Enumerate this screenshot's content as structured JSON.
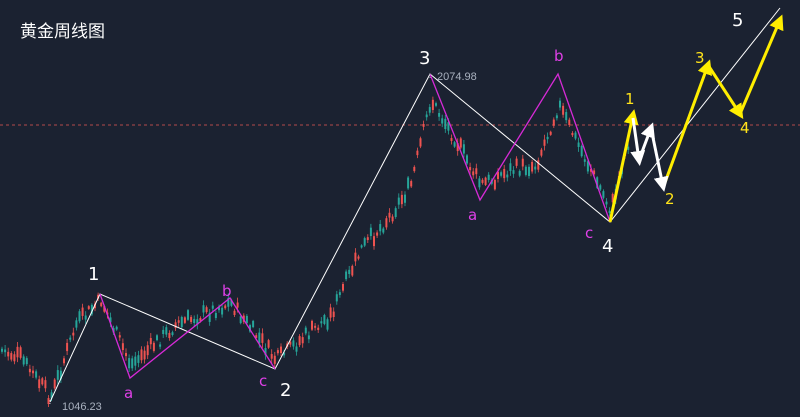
{
  "chart_data": {
    "type": "candlestick",
    "title": "黄金周线图",
    "price_markers": {
      "low": "1046.23",
      "high": "2074.98"
    },
    "wave_labels": [
      {
        "text": "1",
        "color": "#ffffff",
        "size": "big"
      },
      {
        "text": "2",
        "color": "#ffffff",
        "size": "big"
      },
      {
        "text": "3",
        "color": "#ffffff",
        "size": "big"
      },
      {
        "text": "4",
        "color": "#ffffff",
        "size": "big"
      },
      {
        "text": "5",
        "color": "#ffffff",
        "size": "big"
      },
      {
        "text": "a",
        "color": "#e040e8",
        "size": "small"
      },
      {
        "text": "b",
        "color": "#e040e8",
        "size": "small"
      },
      {
        "text": "c",
        "color": "#e040e8",
        "size": "small"
      },
      {
        "text": "a",
        "color": "#e040e8",
        "size": "small"
      },
      {
        "text": "b",
        "color": "#e040e8",
        "size": "small"
      },
      {
        "text": "c",
        "color": "#e040e8",
        "size": "small"
      },
      {
        "text": "1",
        "color": "#ffe31a",
        "size": "small"
      },
      {
        "text": "2",
        "color": "#ffe31a",
        "size": "small"
      },
      {
        "text": "3",
        "color": "#ffe31a",
        "size": "small"
      },
      {
        "text": "4",
        "color": "#ffe31a",
        "size": "small"
      }
    ],
    "colors": {
      "background": "#1b2231",
      "up": "#26a69a",
      "down": "#ef5350",
      "main_wave": "#ffffff",
      "correction": "#d62ad6",
      "projection": "#ffee00",
      "projection_white": "#ffffff",
      "dashed_level": "#b34a4a"
    }
  }
}
